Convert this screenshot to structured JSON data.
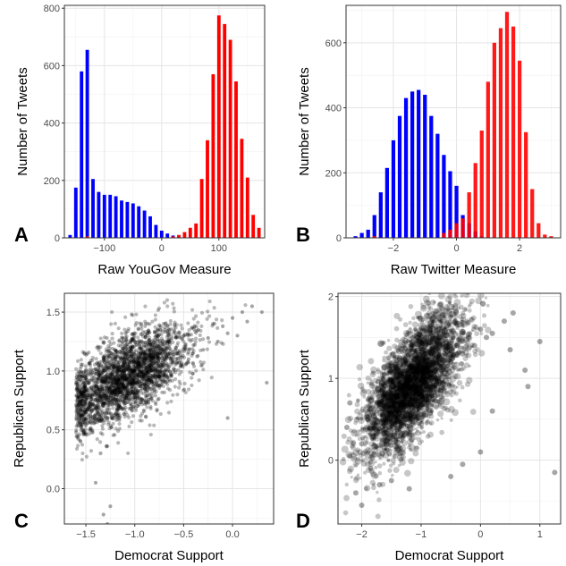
{
  "chart_data": [
    {
      "panel": "A",
      "type": "bar",
      "xlabel": "Raw YouGov Measure",
      "ylabel": "Number of Tweets",
      "xlim": [
        -170,
        180
      ],
      "ylim": [
        0,
        810
      ],
      "xticks": [
        -100,
        0,
        100
      ],
      "yticks": [
        0,
        200,
        400,
        600,
        800
      ],
      "bin_width": 10,
      "grid": true,
      "series": [
        {
          "color": "#0000ff",
          "x": [
            -160,
            -150,
            -140,
            -130,
            -120,
            -110,
            -100,
            -90,
            -80,
            -70,
            -60,
            -50,
            -40,
            -30,
            -20,
            -10,
            0,
            10,
            20,
            30
          ],
          "values": [
            10,
            175,
            580,
            655,
            205,
            160,
            150,
            150,
            145,
            130,
            125,
            120,
            110,
            95,
            75,
            45,
            25,
            15,
            8,
            3
          ]
        },
        {
          "color": "#ff0000",
          "x": [
            -130,
            20,
            30,
            40,
            50,
            60,
            70,
            80,
            90,
            100,
            110,
            120,
            130,
            140,
            150,
            160,
            170
          ],
          "values": [
            5,
            5,
            10,
            20,
            35,
            50,
            205,
            340,
            570,
            775,
            745,
            690,
            545,
            345,
            210,
            80,
            35
          ]
        }
      ]
    },
    {
      "panel": "B",
      "type": "bar",
      "xlabel": "Raw Twitter Measure",
      "ylabel": "Number of Tweets",
      "xlim": [
        -3.5,
        3.3
      ],
      "ylim": [
        0,
        715
      ],
      "xticks": [
        -2,
        0,
        2
      ],
      "yticks": [
        0,
        200,
        400,
        600
      ],
      "bin_width": 0.2,
      "grid": true,
      "series": [
        {
          "color": "#0000ff",
          "x": [
            -3.2,
            -3.0,
            -2.8,
            -2.6,
            -2.4,
            -2.2,
            -2.0,
            -1.8,
            -1.6,
            -1.4,
            -1.2,
            -1.0,
            -0.8,
            -0.6,
            -0.4,
            -0.2,
            0.0,
            0.2,
            0.4,
            0.6,
            0.8
          ],
          "values": [
            5,
            15,
            25,
            70,
            140,
            215,
            300,
            375,
            430,
            450,
            455,
            440,
            375,
            320,
            255,
            205,
            160,
            70,
            45,
            20,
            5
          ]
        },
        {
          "color": "#ff0000",
          "x": [
            -2.6,
            -0.4,
            -0.2,
            0.0,
            0.2,
            0.4,
            0.6,
            0.8,
            1.0,
            1.2,
            1.4,
            1.6,
            1.8,
            2.0,
            2.2,
            2.4,
            2.6,
            2.8,
            3.0
          ],
          "values": [
            5,
            15,
            25,
            45,
            60,
            140,
            230,
            330,
            480,
            600,
            645,
            695,
            650,
            545,
            325,
            150,
            45,
            10,
            5
          ]
        }
      ]
    },
    {
      "panel": "C",
      "type": "scatter",
      "xlabel": "Democrat Support",
      "ylabel": "Republican Support",
      "xlim": [
        -1.72,
        0.42
      ],
      "ylim": [
        -0.3,
        1.66
      ],
      "xticks": [
        -1.5,
        -1.0,
        -0.5,
        0.0
      ],
      "xtick_labels": [
        "-1.5",
        "-1.0",
        "-0.5",
        "0.0"
      ],
      "yticks": [
        0.0,
        0.5,
        1.0,
        1.5
      ],
      "yticks_labels": [
        "0.0",
        "0.5",
        "1.0",
        "1.5"
      ],
      "grid": true,
      "points": [
        [
          -1.55,
          0.8
        ],
        [
          -1.5,
          0.85
        ],
        [
          -1.45,
          0.72
        ],
        [
          -1.4,
          0.9
        ],
        [
          -1.35,
          0.78
        ],
        [
          -1.3,
          0.95
        ],
        [
          -1.28,
          0.6
        ],
        [
          -1.25,
          1.05
        ],
        [
          -1.2,
          0.82
        ],
        [
          -1.15,
          0.92
        ],
        [
          -1.1,
          1.1
        ],
        [
          -1.05,
          0.75
        ],
        [
          -1.0,
          1.0
        ],
        [
          -0.95,
          1.12
        ],
        [
          -0.9,
          0.88
        ],
        [
          -0.85,
          1.05
        ],
        [
          -0.8,
          1.2
        ],
        [
          -0.75,
          0.95
        ],
        [
          -0.7,
          1.1
        ],
        [
          -0.65,
          1.25
        ],
        [
          -0.6,
          1.02
        ],
        [
          -0.55,
          1.15
        ],
        [
          -0.5,
          1.3
        ],
        [
          -0.45,
          1.1
        ],
        [
          -0.4,
          1.22
        ],
        [
          -0.35,
          1.35
        ],
        [
          -0.3,
          1.18
        ],
        [
          -0.25,
          1.28
        ],
        [
          -0.2,
          1.4
        ],
        [
          -0.15,
          1.25
        ],
        [
          -0.1,
          1.38
        ],
        [
          -0.05,
          1.32
        ],
        [
          0.0,
          1.45
        ],
        [
          0.05,
          1.3
        ],
        [
          0.1,
          1.5
        ],
        [
          0.15,
          1.42
        ],
        [
          0.2,
          1.55
        ],
        [
          0.3,
          1.5
        ],
        [
          -1.35,
          0.3
        ],
        [
          -1.45,
          0.5
        ],
        [
          -0.05,
          0.6
        ],
        [
          0.35,
          0.9
        ],
        [
          -1.32,
          -0.22
        ],
        [
          -1.28,
          -0.3
        ],
        [
          -1.25,
          -0.15
        ],
        [
          -1.4,
          0.05
        ],
        [
          -1.6,
          0.48
        ]
      ]
    },
    {
      "panel": "D",
      "type": "scatter",
      "xlabel": "Democrat Support",
      "ylabel": "Republican Support",
      "xlim": [
        -2.4,
        1.35
      ],
      "ylim": [
        -0.78,
        2.04
      ],
      "xticks": [
        -2,
        -1,
        0,
        1
      ],
      "yticks": [
        0,
        1,
        2
      ],
      "grid": true,
      "points": [
        [
          -2.0,
          0.2
        ],
        [
          -1.9,
          0.5
        ],
        [
          -1.8,
          0.3
        ],
        [
          -1.7,
          0.7
        ],
        [
          -1.6,
          0.5
        ],
        [
          -1.5,
          0.8
        ],
        [
          -1.4,
          0.6
        ],
        [
          -1.3,
          0.9
        ],
        [
          -1.2,
          0.75
        ],
        [
          -1.1,
          1.0
        ],
        [
          -1.0,
          0.85
        ],
        [
          -0.9,
          1.1
        ],
        [
          -0.8,
          1.2
        ],
        [
          -0.7,
          1.0
        ],
        [
          -0.6,
          1.3
        ],
        [
          -0.5,
          1.2
        ],
        [
          -0.4,
          1.4
        ],
        [
          -0.3,
          1.3
        ],
        [
          -0.2,
          1.5
        ],
        [
          -0.1,
          1.4
        ],
        [
          0.0,
          1.6
        ],
        [
          0.1,
          1.5
        ],
        [
          0.2,
          1.55
        ],
        [
          0.4,
          1.7
        ],
        [
          0.55,
          1.8
        ],
        [
          0.5,
          1.35
        ],
        [
          1.0,
          1.45
        ],
        [
          1.25,
          -0.15
        ],
        [
          -2.2,
          0.05
        ],
        [
          -2.1,
          -0.4
        ],
        [
          -2.0,
          -0.55
        ],
        [
          -1.5,
          -0.25
        ],
        [
          -1.2,
          -0.35
        ],
        [
          -0.5,
          -0.2
        ],
        [
          -0.3,
          -0.05
        ],
        [
          0.0,
          0.1
        ],
        [
          0.8,
          0.9
        ],
        [
          0.75,
          1.1
        ],
        [
          -2.25,
          0.4
        ],
        [
          -2.2,
          0.7
        ],
        [
          -1.85,
          -0.1
        ],
        [
          -1.7,
          -0.3
        ],
        [
          0.2,
          0.6
        ]
      ]
    }
  ]
}
